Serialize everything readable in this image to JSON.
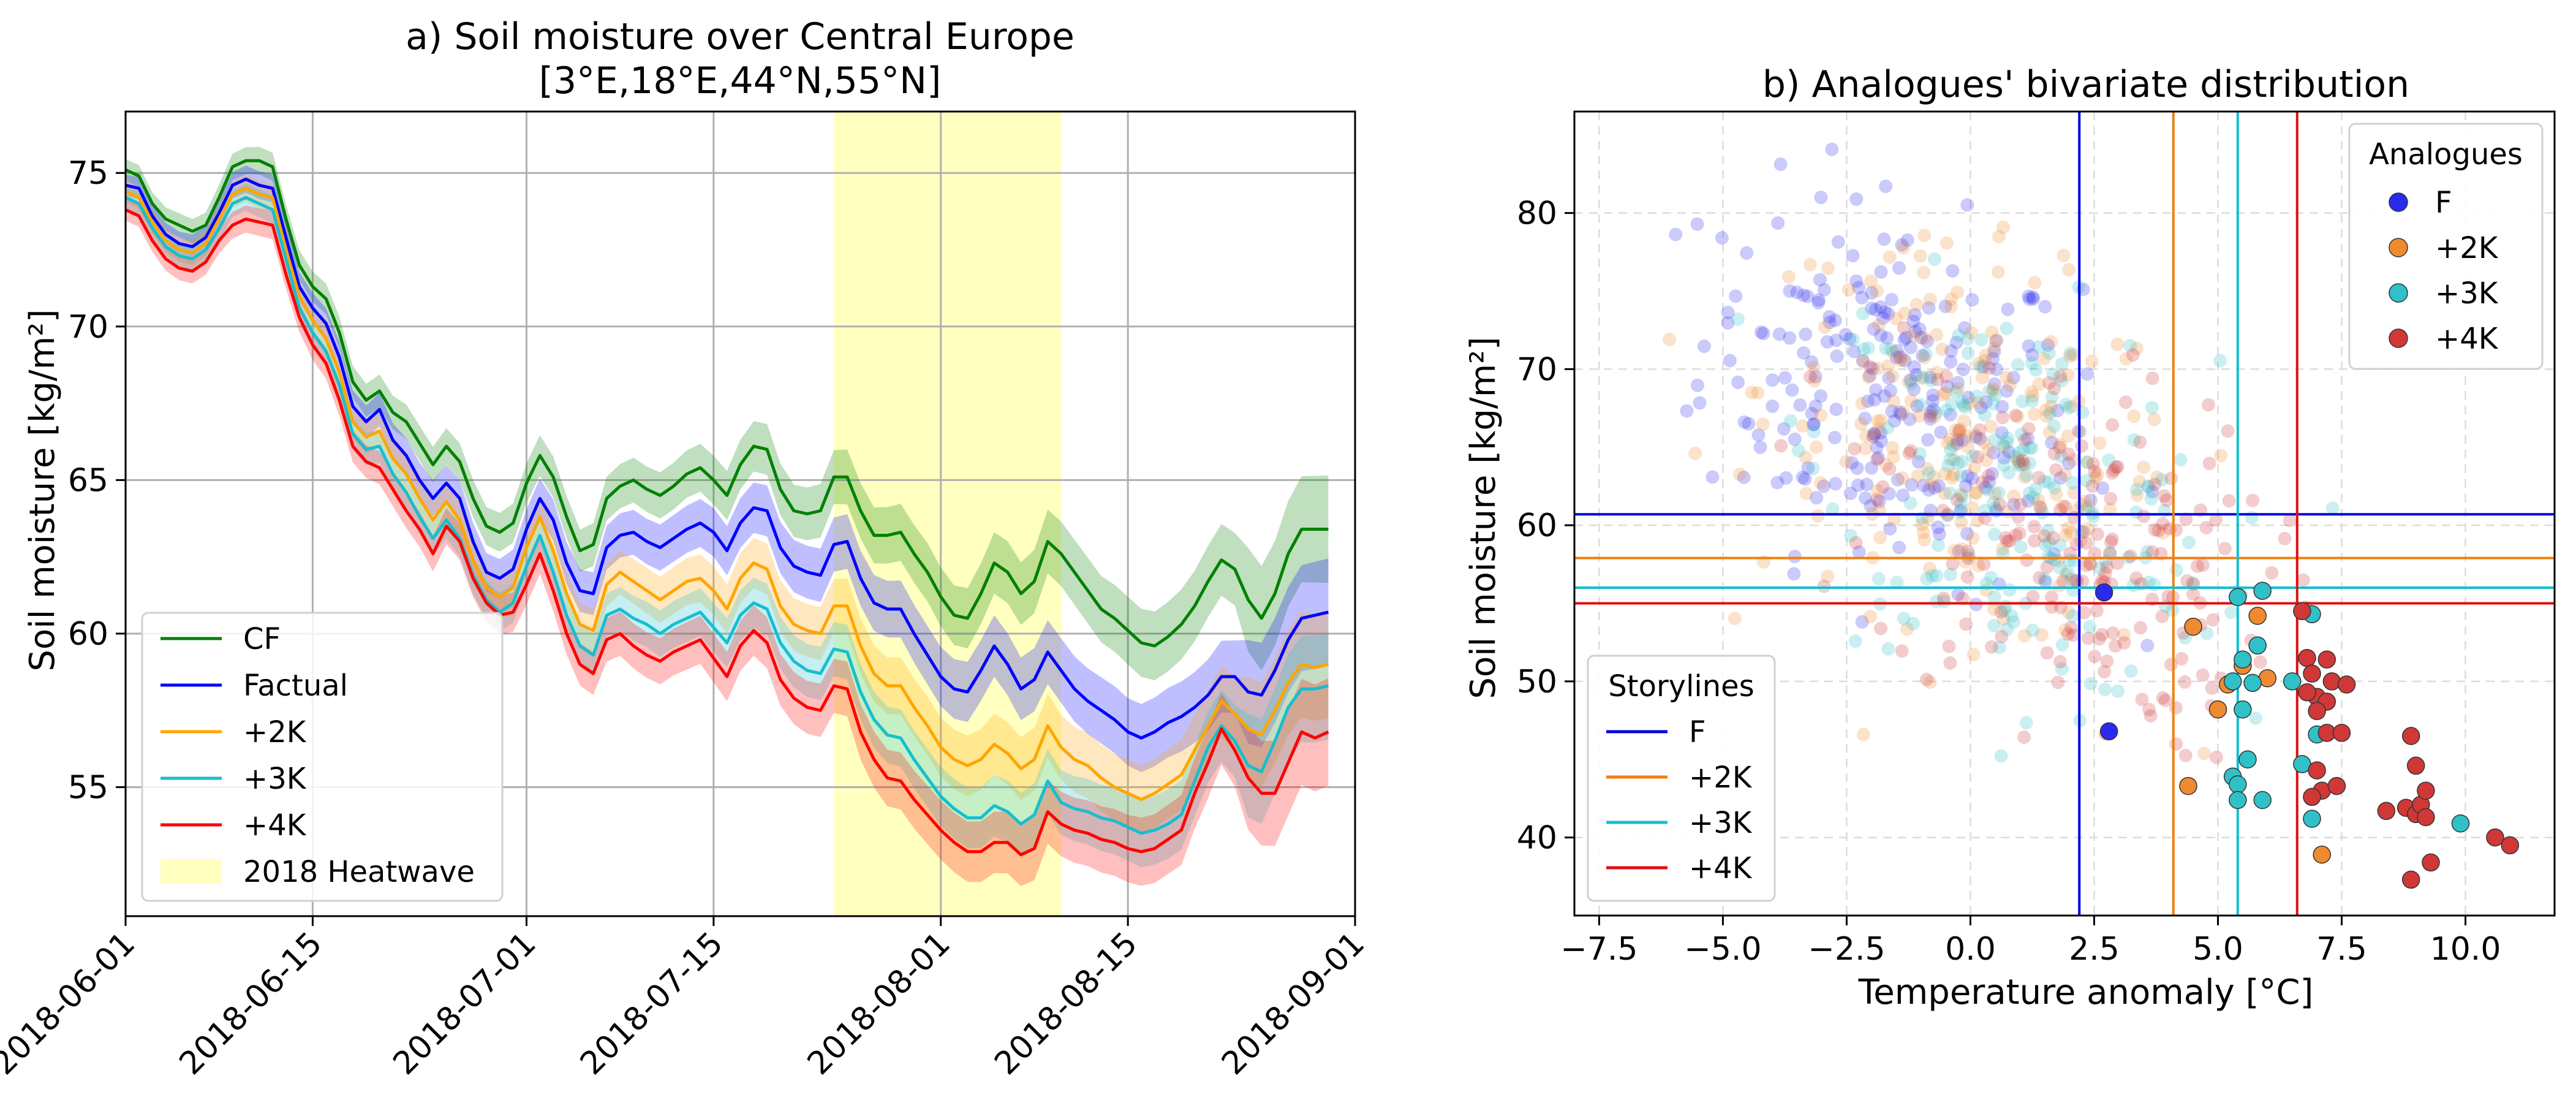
{
  "colors": {
    "CF": "#008000",
    "Factual": "#0000ff",
    "p2K": "#ffa500",
    "p3K": "#17becf",
    "p4K": "#ff0000",
    "heatwave": "#ffffc0",
    "scatter_F": "#2a2af0",
    "scatter_2K": "#f08a30",
    "scatter_3K": "#30c0c8",
    "scatter_4K": "#d03838",
    "vline_F": "#0000dd",
    "vline_2K": "#f07f10",
    "vline_3K": "#10c0d0",
    "vline_4K": "#dd1010"
  },
  "chart_data": [
    {
      "type": "line",
      "title": "a) Soil moisture over Central Europe",
      "subtitle": "[3°E,18°E,44°N,55°N]",
      "xlabel": "",
      "ylabel": "Soil moisture [kg/m²]",
      "x_start": "2018-06-01",
      "x_end": "2018-08-31",
      "xlim": [
        "2018-06-01",
        "2018-09-01"
      ],
      "ylim": [
        50.8,
        77.0
      ],
      "x_ticks": [
        "2018-06-01",
        "2018-06-15",
        "2018-07-01",
        "2018-07-15",
        "2018-08-01",
        "2018-08-15",
        "2018-09-01"
      ],
      "y_ticks": [
        55,
        60,
        65,
        70,
        75
      ],
      "grid": true,
      "legend_position": "lower-left",
      "heatwave": {
        "label": "2018 Heatwave",
        "start": "2018-07-24",
        "end": "2018-08-10"
      },
      "series": [
        {
          "name": "CF",
          "values": [
            75.1,
            74.9,
            74.0,
            73.5,
            73.3,
            73.1,
            73.3,
            74.2,
            75.2,
            75.4,
            75.4,
            75.2,
            73.5,
            72.0,
            71.3,
            70.9,
            69.8,
            68.2,
            67.6,
            67.9,
            67.2,
            66.9,
            66.2,
            65.5,
            66.1,
            65.6,
            64.4,
            63.5,
            63.3,
            63.6,
            64.9,
            65.8,
            65.1,
            63.8,
            62.7,
            62.9,
            64.4,
            64.8,
            65.0,
            64.7,
            64.5,
            64.8,
            65.2,
            65.4,
            65.0,
            64.5,
            65.5,
            66.1,
            66.0,
            64.7,
            64.0,
            63.9,
            64.0,
            65.1,
            65.1,
            64.0,
            63.2,
            63.2,
            63.3,
            62.6,
            62.0,
            61.2,
            60.6,
            60.5,
            61.3,
            62.3,
            62.0,
            61.3,
            61.7,
            63.0,
            62.6,
            62.0,
            61.4,
            60.8,
            60.5,
            60.1,
            59.7,
            59.6,
            59.9,
            60.3,
            60.9,
            61.7,
            62.4,
            62.1,
            61.1,
            60.5,
            61.3,
            62.6,
            63.4,
            63.4,
            63.4
          ]
        },
        {
          "name": "Factual",
          "values": [
            74.6,
            74.5,
            73.6,
            73.0,
            72.7,
            72.6,
            72.9,
            73.7,
            74.6,
            74.8,
            74.6,
            74.5,
            72.9,
            71.3,
            70.6,
            70.1,
            69.0,
            67.4,
            66.9,
            67.3,
            66.3,
            65.8,
            65.0,
            64.4,
            64.9,
            64.4,
            63.0,
            62.0,
            61.8,
            62.1,
            63.4,
            64.4,
            63.7,
            62.3,
            61.4,
            61.3,
            62.8,
            63.2,
            63.3,
            63.0,
            62.8,
            63.1,
            63.4,
            63.6,
            63.3,
            62.7,
            63.6,
            64.1,
            64.0,
            62.8,
            62.2,
            62.0,
            61.9,
            62.9,
            63.0,
            61.8,
            61.0,
            60.8,
            60.8,
            60.0,
            59.3,
            58.6,
            58.2,
            58.1,
            58.8,
            59.6,
            59.0,
            58.2,
            58.5,
            59.4,
            58.8,
            58.2,
            57.8,
            57.5,
            57.2,
            56.8,
            56.6,
            56.8,
            57.1,
            57.3,
            57.6,
            58.0,
            58.6,
            58.6,
            58.1,
            58.0,
            58.8,
            59.8,
            60.5,
            60.6,
            60.7
          ]
        },
        {
          "name": "+2K",
          "values": [
            74.4,
            74.2,
            73.4,
            72.8,
            72.5,
            72.4,
            72.7,
            73.5,
            74.3,
            74.5,
            74.3,
            74.2,
            72.5,
            71.0,
            70.2,
            69.6,
            68.5,
            66.9,
            66.4,
            66.6,
            65.7,
            65.2,
            64.4,
            63.7,
            64.3,
            63.7,
            62.4,
            61.5,
            61.2,
            61.5,
            62.8,
            63.8,
            62.7,
            61.3,
            60.3,
            60.1,
            61.6,
            62.0,
            61.7,
            61.4,
            61.1,
            61.4,
            61.7,
            61.8,
            61.4,
            60.8,
            61.8,
            62.3,
            62.1,
            60.9,
            60.3,
            60.1,
            60.0,
            60.9,
            60.9,
            59.6,
            58.7,
            58.3,
            58.3,
            57.6,
            57.0,
            56.3,
            55.9,
            55.7,
            55.9,
            56.4,
            56.1,
            55.6,
            55.9,
            57.0,
            56.3,
            55.9,
            55.7,
            55.3,
            55.0,
            54.8,
            54.6,
            54.8,
            55.1,
            55.4,
            56.2,
            57.0,
            57.8,
            57.4,
            56.9,
            56.7,
            57.5,
            58.4,
            59.0,
            58.9,
            59.0
          ]
        },
        {
          "name": "+3K",
          "values": [
            74.2,
            74.0,
            73.2,
            72.6,
            72.3,
            72.2,
            72.5,
            73.2,
            74.0,
            74.2,
            74.0,
            73.8,
            72.2,
            70.6,
            69.8,
            69.2,
            68.1,
            66.5,
            66.0,
            66.1,
            65.2,
            64.6,
            63.8,
            63.1,
            63.7,
            63.1,
            61.9,
            61.1,
            60.7,
            61.0,
            62.2,
            63.2,
            62.0,
            60.6,
            59.6,
            59.3,
            60.6,
            60.8,
            60.5,
            60.3,
            60.0,
            60.3,
            60.5,
            60.7,
            60.2,
            59.7,
            60.6,
            61.0,
            60.8,
            59.7,
            59.1,
            58.8,
            58.7,
            59.5,
            59.4,
            58.1,
            57.2,
            56.7,
            56.6,
            55.9,
            55.3,
            54.7,
            54.3,
            54.0,
            54.0,
            54.4,
            54.2,
            53.8,
            54.1,
            55.2,
            54.5,
            54.3,
            54.2,
            54.0,
            53.9,
            53.7,
            53.5,
            53.6,
            53.8,
            54.1,
            55.2,
            56.3,
            57.0,
            56.5,
            55.7,
            55.5,
            56.5,
            57.6,
            58.2,
            58.2,
            58.3
          ]
        },
        {
          "name": "+4K",
          "values": [
            73.8,
            73.6,
            72.8,
            72.2,
            71.9,
            71.8,
            72.1,
            72.8,
            73.3,
            73.5,
            73.4,
            73.3,
            71.7,
            70.3,
            69.4,
            68.8,
            67.6,
            66.1,
            65.6,
            65.4,
            64.7,
            64.0,
            63.4,
            62.6,
            63.5,
            63.0,
            61.8,
            61.0,
            60.6,
            60.7,
            61.6,
            62.6,
            61.4,
            60.0,
            59.0,
            58.7,
            59.8,
            60.0,
            59.6,
            59.3,
            59.1,
            59.4,
            59.6,
            59.8,
            59.2,
            58.6,
            59.6,
            60.1,
            59.7,
            58.5,
            57.9,
            57.6,
            57.5,
            58.3,
            58.2,
            56.8,
            55.9,
            55.3,
            55.2,
            54.6,
            54.1,
            53.6,
            53.2,
            52.9,
            52.9,
            53.2,
            53.2,
            52.8,
            53.0,
            54.2,
            53.8,
            53.6,
            53.5,
            53.3,
            53.2,
            53.0,
            52.9,
            53.0,
            53.3,
            53.6,
            54.8,
            55.8,
            56.9,
            56.2,
            55.3,
            54.8,
            54.8,
            55.8,
            56.8,
            56.6,
            56.8
          ]
        }
      ]
    },
    {
      "type": "scatter",
      "title": "b)  Analogues' bivariate distribution",
      "xlabel": "Temperature anomaly [°C]",
      "ylabel": "Soil moisture [kg/m²]",
      "xlim": [
        -8.0,
        11.8
      ],
      "ylim": [
        35.0,
        86.5
      ],
      "x_ticks": [
        -7.5,
        -5.0,
        -2.5,
        0.0,
        2.5,
        5.0,
        7.5,
        10.0
      ],
      "x_tick_labels": [
        "−7.5",
        "−5.0",
        "−2.5",
        "0.0",
        "2.5",
        "5.0",
        "7.5",
        "10.0"
      ],
      "y_ticks": [
        40,
        50,
        60,
        70,
        80
      ],
      "grid": true,
      "analogues_legend": {
        "title": "Analogues",
        "position": "upper-right",
        "entries": [
          "F",
          "+2K",
          "+3K",
          "+4K"
        ]
      },
      "storylines_legend": {
        "title": "Storylines",
        "position": "lower-left",
        "entries": [
          "F",
          "+2K",
          "+3K",
          "+4K"
        ]
      },
      "storylines": [
        {
          "name": "F",
          "temperature": 2.2,
          "soil_moisture": 60.7
        },
        {
          "name": "+2K",
          "temperature": 4.1,
          "soil_moisture": 57.9
        },
        {
          "name": "+3K",
          "temperature": 5.4,
          "soil_moisture": 56.0
        },
        {
          "name": "+4K",
          "temperature": 6.6,
          "soil_moisture": 55.0
        }
      ],
      "analogues": [
        {
          "name": "F",
          "points": [
            [
              2.7,
              55.7
            ],
            [
              2.8,
              46.8
            ]
          ]
        },
        {
          "name": "+2K",
          "points": [
            [
              4.5,
              53.5
            ],
            [
              4.4,
              43.3
            ],
            [
              5.0,
              48.2
            ],
            [
              5.2,
              49.8
            ],
            [
              5.5,
              51.0
            ],
            [
              5.8,
              54.2
            ],
            [
              6.0,
              50.2
            ],
            [
              7.1,
              38.9
            ]
          ]
        },
        {
          "name": "+3K",
          "points": [
            [
              5.4,
              55.4
            ],
            [
              5.9,
              55.8
            ],
            [
              6.9,
              54.3
            ],
            [
              5.5,
              51.4
            ],
            [
              5.8,
              52.3
            ],
            [
              5.3,
              50.0
            ],
            [
              5.7,
              49.9
            ],
            [
              6.5,
              50.0
            ],
            [
              5.5,
              48.2
            ],
            [
              5.6,
              45.0
            ],
            [
              6.7,
              44.7
            ],
            [
              5.3,
              43.9
            ],
            [
              5.4,
              43.4
            ],
            [
              5.4,
              42.4
            ],
            [
              5.9,
              42.4
            ],
            [
              6.9,
              41.2
            ],
            [
              7.0,
              46.6
            ],
            [
              9.9,
              40.9
            ]
          ]
        },
        {
          "name": "+4K",
          "points": [
            [
              6.7,
              54.5
            ],
            [
              6.8,
              51.5
            ],
            [
              7.2,
              51.4
            ],
            [
              6.9,
              50.5
            ],
            [
              7.3,
              50.0
            ],
            [
              7.0,
              49.0
            ],
            [
              6.8,
              49.3
            ],
            [
              7.6,
              49.8
            ],
            [
              7.2,
              48.7
            ],
            [
              7.0,
              48.1
            ],
            [
              7.2,
              46.7
            ],
            [
              7.5,
              46.7
            ],
            [
              7.0,
              44.3
            ],
            [
              7.1,
              43.0
            ],
            [
              7.4,
              43.3
            ],
            [
              6.9,
              42.6
            ],
            [
              8.4,
              41.7
            ],
            [
              8.8,
              41.9
            ],
            [
              9.0,
              41.5
            ],
            [
              9.1,
              42.1
            ],
            [
              9.2,
              41.3
            ],
            [
              9.3,
              38.4
            ],
            [
              8.9,
              37.3
            ],
            [
              8.9,
              46.5
            ],
            [
              9.0,
              44.6
            ],
            [
              9.2,
              43.0
            ],
            [
              10.6,
              40.0
            ],
            [
              10.9,
              39.5
            ]
          ]
        }
      ]
    }
  ]
}
